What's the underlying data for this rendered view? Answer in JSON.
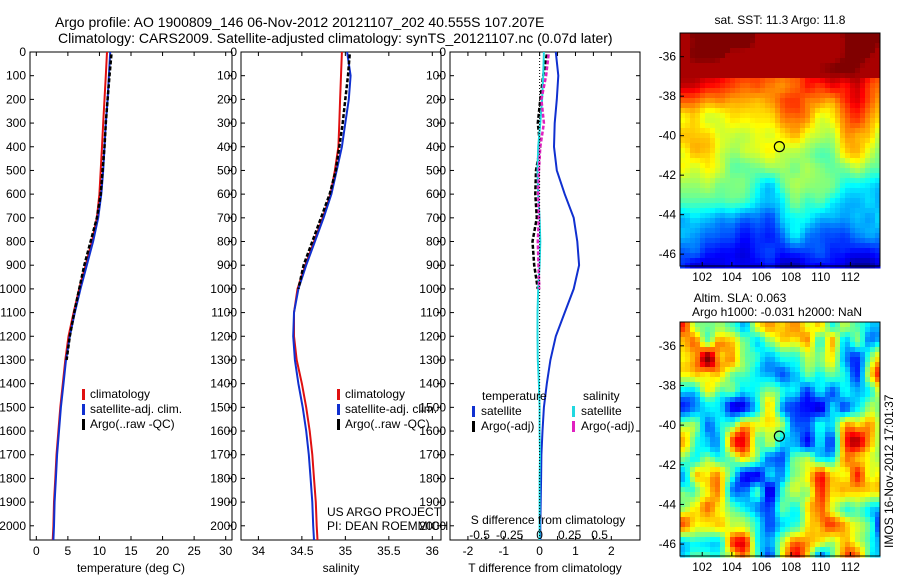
{
  "title": {
    "line1": "Argo profile: AO 1900809_146 06-Nov-2012 20121107_202 40.555S 107.207E",
    "line2": "Climatology: CARS2009. Satellite-adjusted climatology: synTS_20121107.nc (0.07d later)"
  },
  "side_stamp": "IMOS 16-Nov-2012 17:01:37",
  "colors": {
    "climatology": "#e01010",
    "satellite": "#1030d0",
    "argo": "#000000",
    "salinity_satellite": "#20d8e0",
    "salinity_argo": "#e020c0"
  },
  "depth_axis": {
    "ticks": [
      0,
      100,
      200,
      300,
      400,
      500,
      600,
      700,
      800,
      900,
      1000,
      1100,
      1200,
      1300,
      1400,
      1500,
      1600,
      1700,
      1800,
      1900,
      2000
    ],
    "range": [
      0,
      2060
    ]
  },
  "chart_data": [
    {
      "type": "line",
      "id": "temperature",
      "xlabel": "temperature (deg C)",
      "xlim": [
        -1,
        31
      ],
      "xticks": [
        0,
        5,
        10,
        15,
        20,
        25,
        30
      ],
      "legend": [
        "climatology",
        "satellite-adj. clim.",
        "Argo(..raw -QC)"
      ],
      "series": [
        {
          "name": "climatology",
          "color": "red",
          "points": [
            [
              11.2,
              0
            ],
            [
              11.0,
              100
            ],
            [
              10.8,
              200
            ],
            [
              10.6,
              300
            ],
            [
              10.4,
              400
            ],
            [
              10.2,
              500
            ],
            [
              10.0,
              600
            ],
            [
              9.6,
              700
            ],
            [
              8.8,
              800
            ],
            [
              7.8,
              900
            ],
            [
              6.8,
              1000
            ],
            [
              5.9,
              1100
            ],
            [
              5.1,
              1200
            ],
            [
              4.6,
              1300
            ],
            [
              4.2,
              1400
            ],
            [
              3.8,
              1500
            ],
            [
              3.5,
              1600
            ],
            [
              3.2,
              1700
            ],
            [
              3.0,
              1800
            ],
            [
              2.8,
              1900
            ],
            [
              2.7,
              2000
            ],
            [
              2.6,
              2060
            ]
          ]
        },
        {
          "name": "satellite-adj. clim.",
          "color": "blue",
          "points": [
            [
              11.7,
              0
            ],
            [
              11.5,
              100
            ],
            [
              11.3,
              200
            ],
            [
              11.0,
              300
            ],
            [
              10.8,
              400
            ],
            [
              10.6,
              500
            ],
            [
              10.3,
              600
            ],
            [
              9.8,
              700
            ],
            [
              9.0,
              800
            ],
            [
              8.0,
              900
            ],
            [
              7.0,
              1000
            ],
            [
              6.1,
              1100
            ],
            [
              5.3,
              1200
            ],
            [
              4.7,
              1300
            ],
            [
              4.3,
              1400
            ],
            [
              3.9,
              1500
            ],
            [
              3.6,
              1600
            ],
            [
              3.3,
              1700
            ],
            [
              3.1,
              1800
            ],
            [
              2.9,
              1900
            ],
            [
              2.8,
              2000
            ],
            [
              2.7,
              2060
            ]
          ]
        },
        {
          "name": "Argo(..raw -QC)",
          "color": "black",
          "points": [
            [
              11.9,
              10
            ],
            [
              11.6,
              100
            ],
            [
              11.3,
              200
            ],
            [
              11.0,
              300
            ],
            [
              10.8,
              400
            ],
            [
              10.5,
              500
            ],
            [
              10.2,
              600
            ],
            [
              9.6,
              700
            ],
            [
              8.6,
              800
            ],
            [
              7.6,
              900
            ],
            [
              6.8,
              1000
            ],
            [
              6.0,
              1100
            ],
            [
              5.3,
              1200
            ],
            [
              4.8,
              1300
            ]
          ]
        }
      ]
    },
    {
      "type": "line",
      "id": "salinity",
      "xlabel": "salinity",
      "xlim": [
        33.8,
        36.1
      ],
      "xticks": [
        34,
        34.5,
        35,
        35.5,
        36
      ],
      "legend": [
        "climatology",
        "satellite-adj. clim.",
        "Argo(..raw -QC)"
      ],
      "annotation": [
        "US ARGO PROJECT",
        "PI: DEAN ROEMMICH"
      ],
      "series": [
        {
          "name": "climatology",
          "color": "red",
          "points": [
            [
              34.96,
              0
            ],
            [
              34.95,
              100
            ],
            [
              34.94,
              200
            ],
            [
              34.93,
              300
            ],
            [
              34.92,
              400
            ],
            [
              34.88,
              500
            ],
            [
              34.83,
              600
            ],
            [
              34.74,
              700
            ],
            [
              34.64,
              800
            ],
            [
              34.54,
              900
            ],
            [
              34.45,
              1000
            ],
            [
              34.41,
              1100
            ],
            [
              34.41,
              1200
            ],
            [
              34.44,
              1300
            ],
            [
              34.5,
              1400
            ],
            [
              34.55,
              1500
            ],
            [
              34.59,
              1600
            ],
            [
              34.62,
              1700
            ],
            [
              34.64,
              1800
            ],
            [
              34.66,
              1900
            ],
            [
              34.67,
              2000
            ],
            [
              34.68,
              2060
            ]
          ]
        },
        {
          "name": "satellite-adj. clim.",
          "color": "blue",
          "points": [
            [
              35.02,
              0
            ],
            [
              35.06,
              100
            ],
            [
              35.04,
              200
            ],
            [
              35.0,
              300
            ],
            [
              34.96,
              400
            ],
            [
              34.9,
              500
            ],
            [
              34.84,
              600
            ],
            [
              34.75,
              700
            ],
            [
              34.65,
              800
            ],
            [
              34.55,
              900
            ],
            [
              34.46,
              1000
            ],
            [
              34.41,
              1100
            ],
            [
              34.4,
              1200
            ],
            [
              34.42,
              1300
            ],
            [
              34.46,
              1400
            ],
            [
              34.51,
              1500
            ],
            [
              34.55,
              1600
            ],
            [
              34.58,
              1700
            ],
            [
              34.6,
              1800
            ],
            [
              34.62,
              1900
            ],
            [
              34.63,
              2000
            ],
            [
              34.64,
              2060
            ]
          ]
        },
        {
          "name": "Argo(..raw -QC)",
          "color": "black",
          "points": [
            [
              35.05,
              10
            ],
            [
              35.03,
              100
            ],
            [
              35.0,
              200
            ],
            [
              34.97,
              300
            ],
            [
              34.93,
              400
            ],
            [
              34.89,
              500
            ],
            [
              34.82,
              600
            ],
            [
              34.72,
              700
            ],
            [
              34.62,
              800
            ],
            [
              34.52,
              900
            ],
            [
              34.46,
              1000
            ]
          ]
        }
      ]
    },
    {
      "type": "line",
      "id": "difference",
      "xlabel": "T difference from climatology",
      "xlabel2": "S difference from climatology",
      "xlim": [
        -2.5,
        2.8
      ],
      "xticks": [
        -2,
        -1.5,
        -1,
        -0.5,
        0,
        0.5,
        1,
        1.5,
        2
      ],
      "xticklabels": [
        "-2",
        "",
        "-1",
        "",
        "0",
        "",
        "1",
        "",
        "2"
      ],
      "xticks_top": [
        -0.5,
        -0.25,
        0,
        0.25,
        0.5
      ],
      "legend_t_title": "temperature",
      "legend_s_title": "salinity",
      "legend_t": [
        "satellite",
        "Argo(-adj)"
      ],
      "legend_s": [
        "satellite",
        "Argo(-adj)"
      ],
      "series": [
        {
          "name": "temperature satellite",
          "color": "blue",
          "points": [
            [
              0.45,
              0
            ],
            [
              0.52,
              100
            ],
            [
              0.48,
              200
            ],
            [
              0.42,
              300
            ],
            [
              0.4,
              400
            ],
            [
              0.48,
              500
            ],
            [
              0.7,
              600
            ],
            [
              0.95,
              700
            ],
            [
              1.05,
              800
            ],
            [
              1.1,
              900
            ],
            [
              0.95,
              1000
            ],
            [
              0.7,
              1100
            ],
            [
              0.45,
              1200
            ],
            [
              0.3,
              1300
            ],
            [
              0.2,
              1400
            ],
            [
              0.12,
              1500
            ],
            [
              0.08,
              1600
            ],
            [
              0.05,
              1700
            ],
            [
              0.04,
              1800
            ],
            [
              0.03,
              1900
            ],
            [
              0.02,
              2000
            ],
            [
              0.02,
              2060
            ]
          ]
        },
        {
          "name": "temperature Argo(-adj)",
          "color": "black",
          "points": [
            [
              0.2,
              10
            ],
            [
              0.1,
              100
            ],
            [
              0.02,
              200
            ],
            [
              -0.05,
              300
            ],
            [
              0.02,
              400
            ],
            [
              -0.1,
              500
            ],
            [
              -0.12,
              600
            ],
            [
              -0.08,
              700
            ],
            [
              -0.2,
              800
            ],
            [
              -0.15,
              900
            ],
            [
              -0.05,
              1000
            ]
          ]
        },
        {
          "name": "salinity satellite",
          "color": "cyan",
          "points": [
            [
              0.12,
              0
            ],
            [
              0.1,
              100
            ],
            [
              0.07,
              200
            ],
            [
              0.02,
              300
            ],
            [
              -0.04,
              400
            ],
            [
              -0.06,
              500
            ],
            [
              -0.04,
              600
            ],
            [
              0.0,
              700
            ],
            [
              0.02,
              800
            ],
            [
              0.0,
              900
            ],
            [
              -0.04,
              1000
            ],
            [
              -0.06,
              1100
            ],
            [
              -0.06,
              1200
            ],
            [
              -0.05,
              1300
            ],
            [
              -0.02,
              1400
            ],
            [
              0.0,
              1500
            ],
            [
              0.0,
              1600
            ],
            [
              0.01,
              1700
            ],
            [
              0.0,
              1800
            ],
            [
              0.0,
              1900
            ],
            [
              0.0,
              2000
            ],
            [
              0.0,
              2060
            ]
          ]
        },
        {
          "name": "salinity Argo(-adj)",
          "color": "magenta",
          "points": [
            [
              0.25,
              10
            ],
            [
              0.18,
              100
            ],
            [
              0.05,
              200
            ],
            [
              0.12,
              300
            ],
            [
              0.02,
              400
            ],
            [
              -0.02,
              500
            ],
            [
              -0.04,
              600
            ],
            [
              -0.02,
              700
            ],
            [
              -0.05,
              800
            ],
            [
              -0.03,
              900
            ],
            [
              -0.01,
              1000
            ]
          ]
        }
      ]
    },
    {
      "type": "heatmap",
      "id": "sst_map",
      "title": "sat. SST: 11.3  Argo: 11.8",
      "xlim": [
        100.5,
        114
      ],
      "ylim": [
        -46.6,
        -34.8
      ],
      "xticks": [
        102,
        104,
        106,
        108,
        110,
        112
      ],
      "yticks": [
        -36,
        -38,
        -40,
        -42,
        -44,
        -46
      ],
      "marker": [
        107.207,
        -40.555
      ]
    },
    {
      "type": "heatmap",
      "id": "sla_map",
      "title": "Altim. SLA: 0.063",
      "title2": "Argo h1000: -0.031  h2000: NaN",
      "xlim": [
        100.5,
        114
      ],
      "ylim": [
        -46.6,
        -34.8
      ],
      "xticks": [
        102,
        104,
        106,
        108,
        110,
        112
      ],
      "yticks": [
        -36,
        -38,
        -40,
        -42,
        -44,
        -46
      ],
      "marker": [
        107.207,
        -40.555
      ]
    }
  ]
}
